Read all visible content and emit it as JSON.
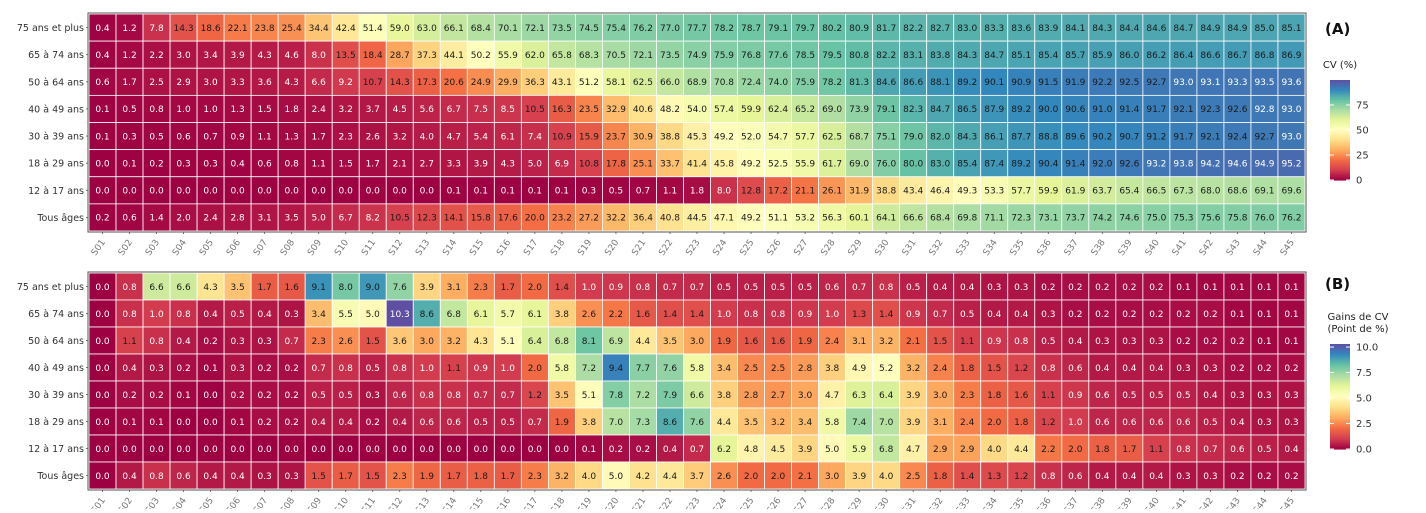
{
  "rows_labels": [
    "75 ans et plus",
    "65 à 74 ans",
    "50 à 64 ans",
    "40 à 49 ans",
    "30 à 39 ans",
    "18 à 29 ans",
    "12 à 17 ans",
    "Tous âges"
  ],
  "weeks": [
    "S01",
    "S02",
    "S03",
    "S04",
    "S05",
    "S06",
    "S07",
    "S08",
    "S09",
    "S10",
    "S11",
    "S12",
    "S13",
    "S14",
    "S15",
    "S16",
    "S17",
    "S18",
    "S19",
    "S20",
    "S21",
    "S22",
    "S23",
    "S24",
    "S25",
    "S26",
    "S27",
    "S28",
    "S29",
    "S30",
    "S31",
    "S32",
    "S33",
    "S34",
    "S35",
    "S36",
    "S37",
    "S38",
    "S39",
    "S40",
    "S41",
    "S42",
    "S43",
    "S44",
    "S45"
  ],
  "colors": {
    "scale": [
      "#9e0142",
      "#d53e4f",
      "#f46d43",
      "#fdae61",
      "#fee08b",
      "#ffffbf",
      "#e6f598",
      "#abdda4",
      "#66c2a5",
      "#3288bd",
      "#5e4fa2"
    ],
    "grid_line": "#ffffff",
    "axis_text": "#333333",
    "tick_text": "#777777"
  },
  "chart_data": [
    {
      "type": "heatmap",
      "panel": "(A)",
      "legend_title": "CV (%)",
      "legend_ticks": [
        "75",
        "50",
        "25",
        "0"
      ],
      "legend_tick_values": [
        75,
        50,
        25,
        0
      ],
      "zlim": [
        0,
        100
      ],
      "rows": [
        "75 ans et plus",
        "65 à 74 ans",
        "50 à 64 ans",
        "40 à 49 ans",
        "30 à 39 ans",
        "18 à 29 ans",
        "12 à 17 ans",
        "Tous âges"
      ],
      "values": [
        [
          0.4,
          1.2,
          7.8,
          14.3,
          18.6,
          22.1,
          23.8,
          25.4,
          34.4,
          42.4,
          51.4,
          59.0,
          63.0,
          66.1,
          68.4,
          70.1,
          72.1,
          73.5,
          74.5,
          75.4,
          76.2,
          77.0,
          77.7,
          78.2,
          78.7,
          79.1,
          79.7,
          80.2,
          80.9,
          81.7,
          82.2,
          82.7,
          83.0,
          83.3,
          83.6,
          83.9,
          84.1,
          84.3,
          84.4,
          84.6,
          84.7,
          84.9,
          84.9,
          85.0,
          85.1
        ],
        [
          0.4,
          1.2,
          2.2,
          3.0,
          3.4,
          3.9,
          4.3,
          4.6,
          8.0,
          13.5,
          18.4,
          28.7,
          37.3,
          44.1,
          50.2,
          55.9,
          62.0,
          65.8,
          68.3,
          70.5,
          72.1,
          73.5,
          74.9,
          75.9,
          76.8,
          77.6,
          78.5,
          79.5,
          80.8,
          82.2,
          83.1,
          83.8,
          84.3,
          84.7,
          85.1,
          85.4,
          85.7,
          85.9,
          86.0,
          86.2,
          86.4,
          86.6,
          86.7,
          86.8,
          86.9
        ],
        [
          0.6,
          1.7,
          2.5,
          2.9,
          3.0,
          3.3,
          3.6,
          4.3,
          6.6,
          9.2,
          10.7,
          14.3,
          17.3,
          20.6,
          24.9,
          29.9,
          36.3,
          43.1,
          51.2,
          58.1,
          62.5,
          66.0,
          68.9,
          70.8,
          72.4,
          74.0,
          75.9,
          78.2,
          81.3,
          84.6,
          86.6,
          88.1,
          89.2,
          90.1,
          90.9,
          91.5,
          91.9,
          92.2,
          92.5,
          92.7,
          93.0,
          93.1,
          93.3,
          93.5,
          93.6
        ],
        [
          0.1,
          0.5,
          0.8,
          1.0,
          1.0,
          1.3,
          1.5,
          1.8,
          2.4,
          3.2,
          3.7,
          4.5,
          5.6,
          6.7,
          7.5,
          8.5,
          10.5,
          16.3,
          23.5,
          32.9,
          40.6,
          48.2,
          54.0,
          57.4,
          59.9,
          62.4,
          65.2,
          69.0,
          73.9,
          79.1,
          82.3,
          84.7,
          86.5,
          87.9,
          89.2,
          90.0,
          90.6,
          91.0,
          91.4,
          91.7,
          92.1,
          92.3,
          92.6,
          92.8,
          93.0
        ],
        [
          0.1,
          0.3,
          0.5,
          0.6,
          0.7,
          0.9,
          1.1,
          1.3,
          1.7,
          2.3,
          2.6,
          3.2,
          4.0,
          4.7,
          5.4,
          6.1,
          7.4,
          10.9,
          15.9,
          23.7,
          30.9,
          38.8,
          45.3,
          49.2,
          52.0,
          54.7,
          57.7,
          62.5,
          68.7,
          75.1,
          79.0,
          82.0,
          84.3,
          86.1,
          87.7,
          88.8,
          89.6,
          90.2,
          90.7,
          91.2,
          91.7,
          92.1,
          92.4,
          92.7,
          93.0
        ],
        [
          0.0,
          0.1,
          0.2,
          0.3,
          0.3,
          0.4,
          0.6,
          0.8,
          1.1,
          1.5,
          1.7,
          2.1,
          2.7,
          3.3,
          3.9,
          4.3,
          5.0,
          6.9,
          10.8,
          17.8,
          25.1,
          33.7,
          41.4,
          45.8,
          49.2,
          52.5,
          55.9,
          61.7,
          69.0,
          76.0,
          80.0,
          83.0,
          85.4,
          87.4,
          89.2,
          90.4,
          91.4,
          92.0,
          92.6,
          93.2,
          93.8,
          94.2,
          94.6,
          94.9,
          95.2
        ],
        [
          0.0,
          0.0,
          0.0,
          0.0,
          0.0,
          0.0,
          0.0,
          0.0,
          0.0,
          0.0,
          0.0,
          0.0,
          0.0,
          0.1,
          0.1,
          0.1,
          0.1,
          0.1,
          0.3,
          0.5,
          0.7,
          1.1,
          1.8,
          8.0,
          12.8,
          17.2,
          21.1,
          26.1,
          31.9,
          38.8,
          43.4,
          46.4,
          49.3,
          53.3,
          57.7,
          59.9,
          61.9,
          63.7,
          65.4,
          66.5,
          67.3,
          68.0,
          68.6,
          69.1,
          69.6
        ],
        [
          0.2,
          0.6,
          1.4,
          2.0,
          2.4,
          2.8,
          3.1,
          3.5,
          5.0,
          6.7,
          8.2,
          10.5,
          12.3,
          14.1,
          15.8,
          17.6,
          20.0,
          23.2,
          27.2,
          32.2,
          36.4,
          40.8,
          44.5,
          47.1,
          49.2,
          51.1,
          53.2,
          56.3,
          60.1,
          64.1,
          66.6,
          68.4,
          69.8,
          71.1,
          72.3,
          73.1,
          73.7,
          74.2,
          74.6,
          75.0,
          75.3,
          75.6,
          75.8,
          76.0,
          76.2
        ]
      ]
    },
    {
      "type": "heatmap",
      "panel": "(B)",
      "legend_title": [
        "Gains de CV",
        "(Point de %)"
      ],
      "legend_ticks": [
        "10.0",
        "7.5",
        "5.0",
        "2.5",
        "0.0"
      ],
      "legend_tick_values": [
        10,
        7.5,
        5,
        2.5,
        0
      ],
      "zlim": [
        0,
        10.3
      ],
      "rows": [
        "75 ans et plus",
        "65 à 74 ans",
        "50 à 64 ans",
        "40 à 49 ans",
        "30 à 39 ans",
        "18 à 29 ans",
        "12 à 17 ans",
        "Tous âges"
      ],
      "values": [
        [
          0.0,
          0.8,
          6.6,
          6.6,
          4.3,
          3.5,
          1.7,
          1.6,
          9.1,
          8.0,
          9.0,
          7.6,
          3.9,
          3.1,
          2.3,
          1.7,
          2.0,
          1.4,
          1.0,
          0.9,
          0.8,
          0.7,
          0.7,
          0.5,
          0.5,
          0.5,
          0.5,
          0.6,
          0.7,
          0.8,
          0.5,
          0.4,
          0.4,
          0.3,
          0.3,
          0.2,
          0.2,
          0.2,
          0.2,
          0.2,
          0.1,
          0.1,
          0.1,
          0.1,
          0.1
        ],
        [
          0.0,
          0.8,
          1.0,
          0.8,
          0.4,
          0.5,
          0.4,
          0.3,
          3.4,
          5.5,
          5.0,
          10.3,
          8.6,
          6.8,
          6.1,
          5.7,
          6.1,
          3.8,
          2.6,
          2.2,
          1.6,
          1.4,
          1.4,
          1.0,
          0.8,
          0.8,
          0.9,
          1.0,
          1.3,
          1.4,
          0.9,
          0.7,
          0.5,
          0.4,
          0.4,
          0.3,
          0.2,
          0.2,
          0.2,
          0.2,
          0.2,
          0.2,
          0.1,
          0.1,
          0.1
        ],
        [
          0.0,
          1.1,
          0.8,
          0.4,
          0.2,
          0.3,
          0.3,
          0.7,
          2.3,
          2.6,
          1.5,
          3.6,
          3.0,
          3.2,
          4.3,
          5.1,
          6.4,
          6.8,
          8.1,
          6.9,
          4.4,
          3.5,
          3.0,
          1.9,
          1.6,
          1.6,
          1.9,
          2.4,
          3.1,
          3.2,
          2.1,
          1.5,
          1.1,
          0.9,
          0.8,
          0.5,
          0.4,
          0.3,
          0.3,
          0.3,
          0.2,
          0.2,
          0.2,
          0.1,
          0.1
        ],
        [
          0.0,
          0.4,
          0.3,
          0.2,
          0.1,
          0.3,
          0.2,
          0.2,
          0.7,
          0.8,
          0.5,
          0.8,
          1.0,
          1.1,
          0.9,
          1.0,
          2.0,
          5.8,
          7.2,
          9.4,
          7.7,
          7.6,
          5.8,
          3.4,
          2.5,
          2.5,
          2.8,
          3.8,
          4.9,
          5.2,
          3.2,
          2.4,
          1.8,
          1.5,
          1.2,
          0.8,
          0.6,
          0.4,
          0.4,
          0.4,
          0.3,
          0.3,
          0.2,
          0.2,
          0.2
        ],
        [
          0.0,
          0.2,
          0.2,
          0.1,
          0.0,
          0.2,
          0.2,
          0.2,
          0.5,
          0.5,
          0.3,
          0.6,
          0.8,
          0.8,
          0.7,
          0.7,
          1.2,
          3.5,
          5.1,
          7.8,
          7.2,
          7.9,
          6.6,
          3.8,
          2.8,
          2.7,
          3.0,
          4.7,
          6.3,
          6.4,
          3.9,
          3.0,
          2.3,
          1.8,
          1.6,
          1.1,
          0.9,
          0.6,
          0.5,
          0.5,
          0.5,
          0.4,
          0.3,
          0.3,
          0.3
        ],
        [
          0.0,
          0.1,
          0.1,
          0.0,
          0.0,
          0.1,
          0.2,
          0.2,
          0.4,
          0.4,
          0.2,
          0.4,
          0.6,
          0.6,
          0.5,
          0.5,
          0.7,
          1.9,
          3.8,
          7.0,
          7.3,
          8.6,
          7.6,
          4.4,
          3.5,
          3.2,
          3.4,
          5.8,
          7.4,
          7.0,
          3.9,
          3.1,
          2.4,
          2.0,
          1.8,
          1.2,
          1.0,
          0.6,
          0.6,
          0.6,
          0.6,
          0.5,
          0.4,
          0.3,
          0.3
        ],
        [
          0.0,
          0.0,
          0.0,
          0.0,
          0.0,
          0.0,
          0.0,
          0.0,
          0.0,
          0.0,
          0.0,
          0.0,
          0.0,
          0.0,
          0.0,
          0.0,
          0.0,
          0.0,
          0.1,
          0.2,
          0.2,
          0.4,
          0.7,
          6.2,
          4.8,
          4.5,
          3.9,
          5.0,
          5.9,
          6.8,
          4.7,
          2.9,
          2.9,
          4.0,
          4.4,
          2.2,
          2.0,
          1.8,
          1.7,
          1.1,
          0.8,
          0.7,
          0.6,
          0.5,
          0.4
        ],
        [
          0.0,
          0.4,
          0.8,
          0.6,
          0.4,
          0.4,
          0.3,
          0.3,
          1.5,
          1.7,
          1.5,
          2.3,
          1.9,
          1.7,
          1.8,
          1.7,
          2.3,
          3.2,
          4.0,
          5.0,
          4.2,
          4.4,
          3.7,
          2.6,
          2.0,
          2.0,
          2.1,
          3.0,
          3.9,
          4.0,
          2.5,
          1.8,
          1.4,
          1.3,
          1.2,
          0.8,
          0.6,
          0.4,
          0.4,
          0.4,
          0.3,
          0.3,
          0.2,
          0.2,
          0.2
        ]
      ]
    }
  ]
}
